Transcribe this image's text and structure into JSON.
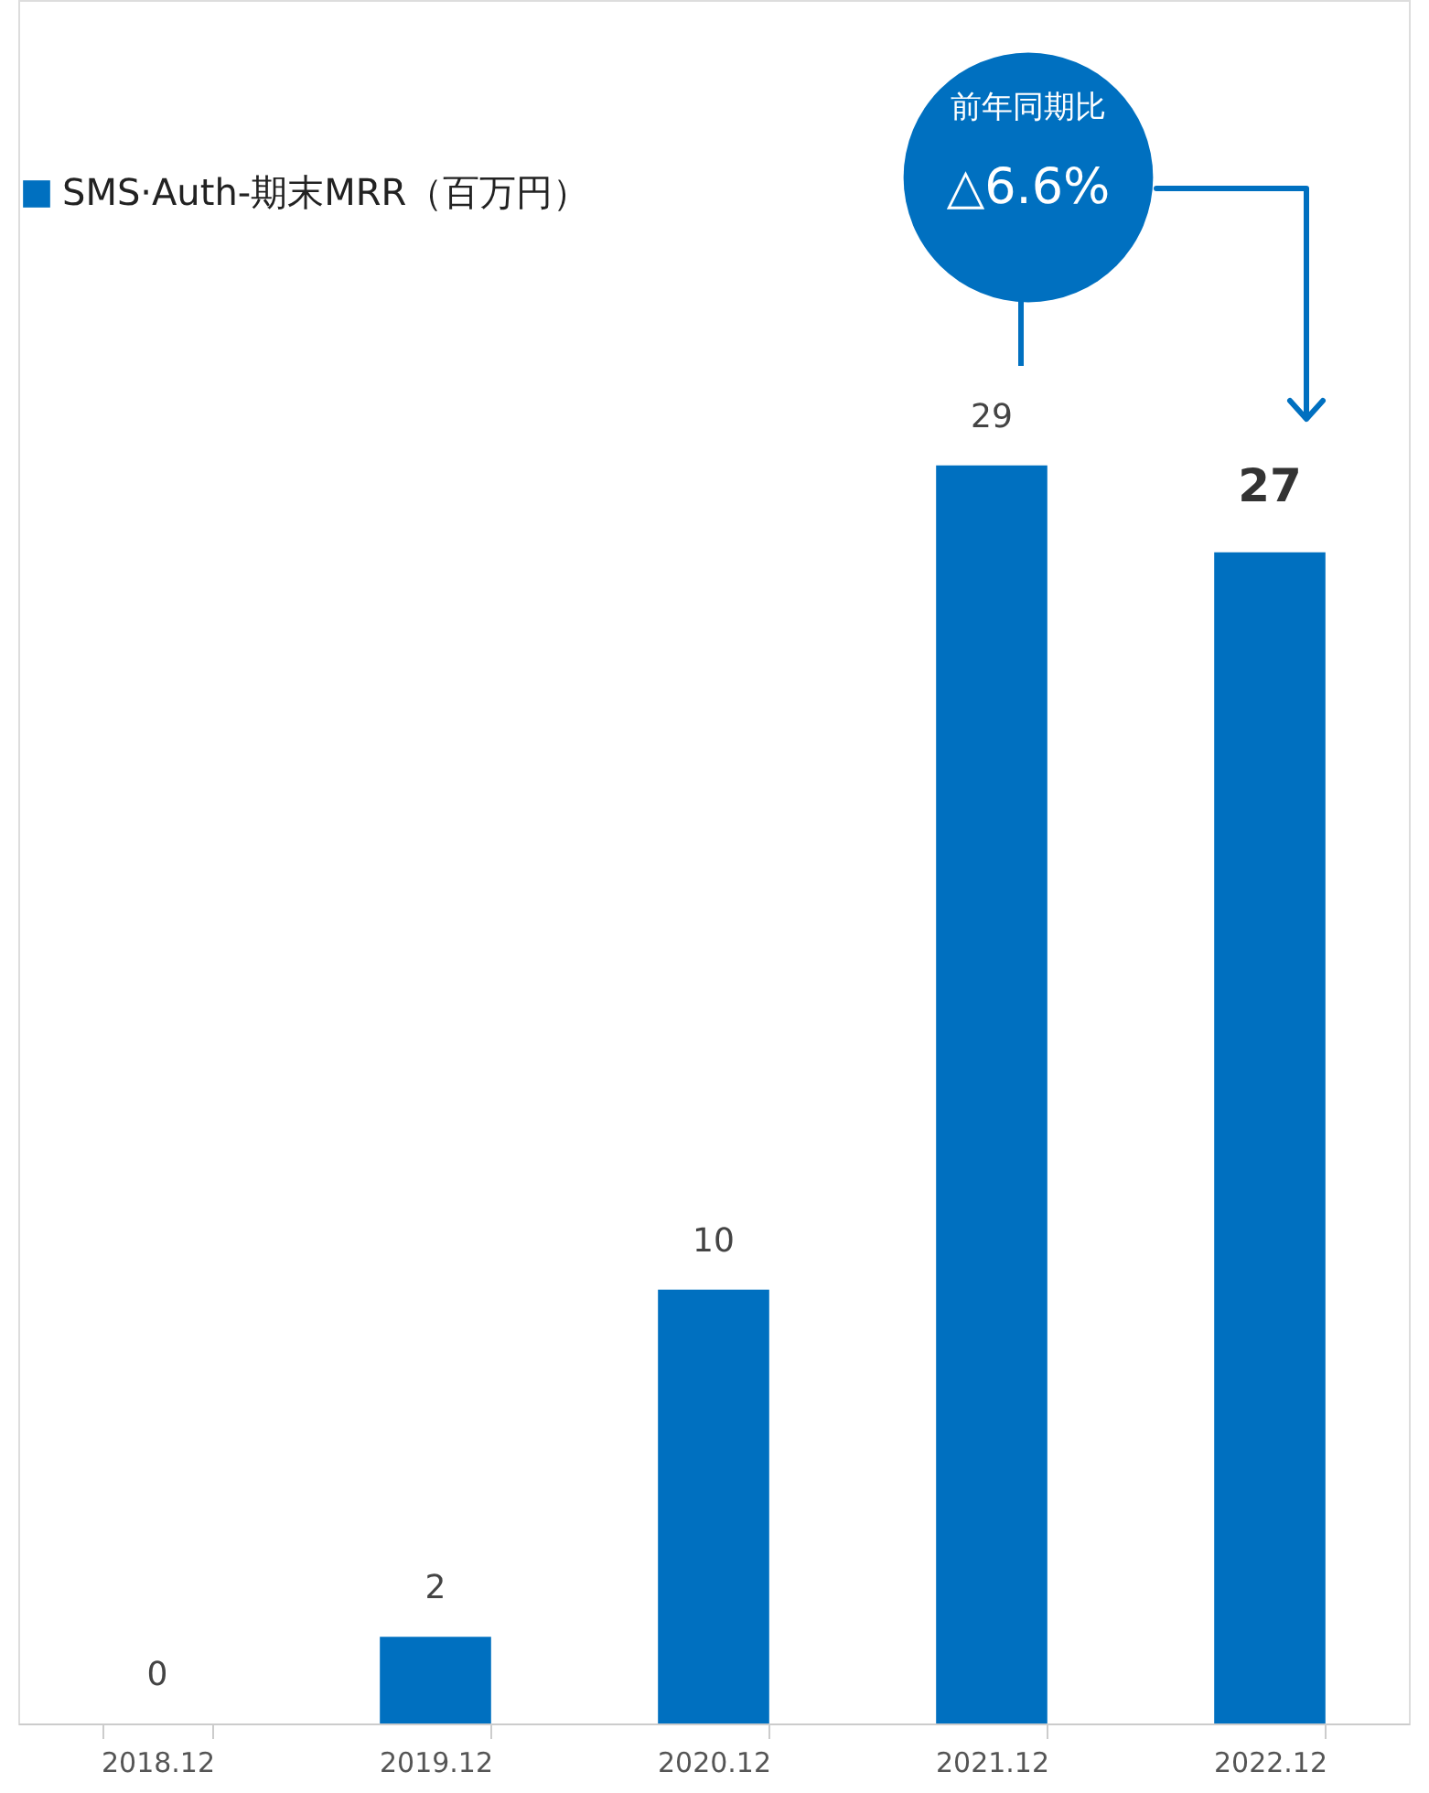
{
  "chart_data": {
    "type": "bar",
    "categories": [
      "2018.12",
      "2019.12",
      "2020.12",
      "2021.12",
      "2022.12"
    ],
    "series": [
      {
        "name": "SMS·Auth-期末MRR（百万円）",
        "color": "#0070c0",
        "values": [
          0,
          2,
          10,
          29,
          27
        ]
      }
    ],
    "data_labels": true,
    "legend": "top left",
    "grid": false,
    "annotations": [
      "前年同期比",
      "△6.6%"
    ]
  }
}
